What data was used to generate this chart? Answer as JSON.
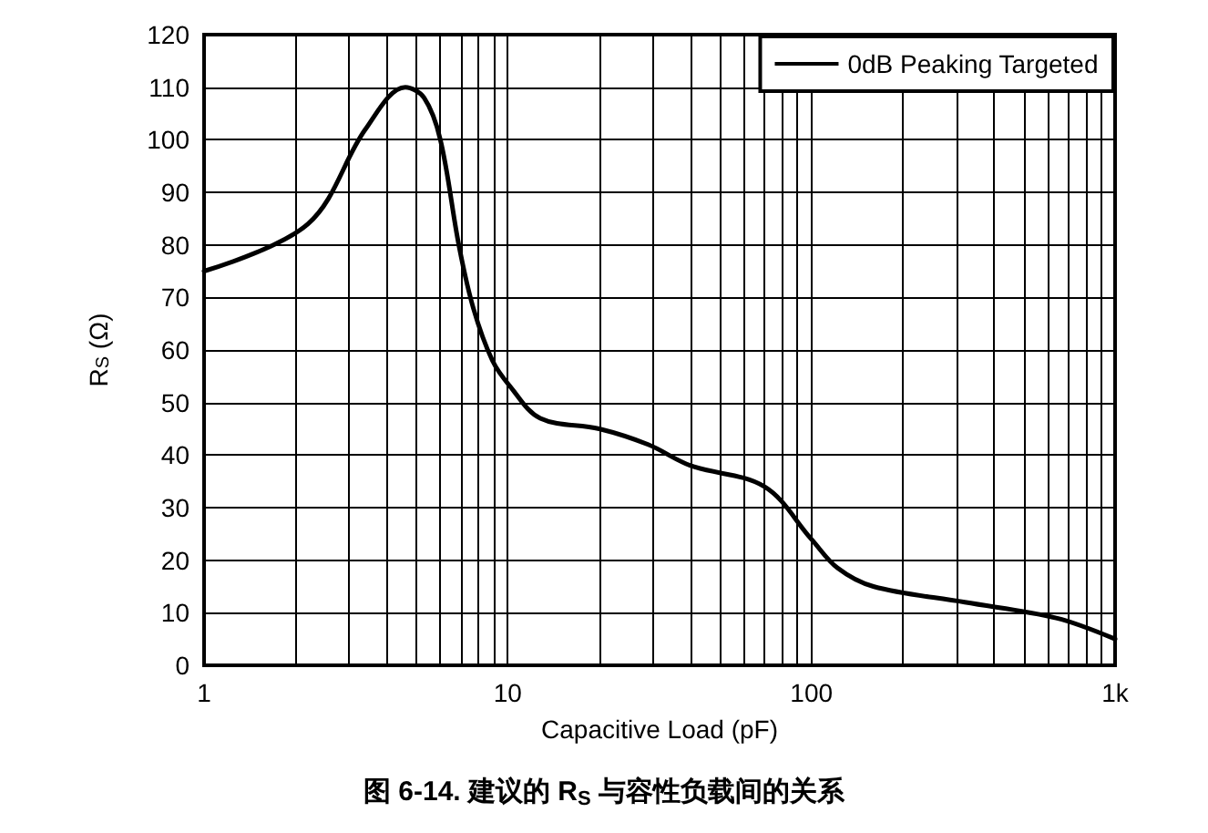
{
  "chart_data": {
    "type": "line",
    "title": "图 6-14. 建议的 R$_{S}$ 与容性负载间的关系",
    "xlabel": "Capacitive Load (pF)",
    "ylabel": "R$_{S}$ (Ω)",
    "log": "x",
    "xlim": [
      1,
      1000
    ],
    "xticks": [
      1,
      10,
      100,
      {
        "value": 1000,
        "label": "1k"
      }
    ],
    "ylim": [
      0,
      120
    ],
    "yticks": [
      0,
      10,
      20,
      30,
      40,
      50,
      60,
      70,
      80,
      90,
      100,
      110,
      120
    ],
    "grid": true,
    "legend": "top right",
    "marker": "none",
    "line_style": "solid",
    "series": [
      {
        "name": "0dB Peaking Targeted",
        "color": "#000000",
        "x": [
          1,
          2.2,
          3.4,
          4.6,
          5.3,
          6,
          6.9,
          7.7,
          8.9,
          10.2,
          12.8,
          20,
          29,
          40,
          70,
          100,
          122,
          160,
          320,
          640,
          1000
        ],
        "values": [
          75,
          84,
          102,
          110,
          108,
          100,
          80,
          68,
          58,
          53,
          47,
          45,
          42,
          38,
          34,
          24,
          18.5,
          15,
          12,
          9,
          5
        ]
      }
    ]
  }
}
